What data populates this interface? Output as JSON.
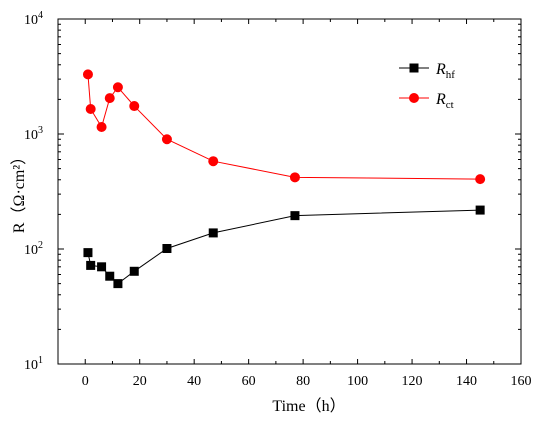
{
  "chart_data": {
    "type": "line",
    "xlabel": "Time（h）",
    "ylabel": "R（Ω·cm²）",
    "xlim": [
      -10,
      160
    ],
    "ylim_log10": [
      1,
      4
    ],
    "y_scale": "log",
    "x_ticks": [
      0,
      20,
      40,
      60,
      80,
      100,
      120,
      140,
      160
    ],
    "x_tick_labels": [
      "0",
      "20",
      "40",
      "60",
      "80",
      "100",
      "120",
      "140",
      "160"
    ],
    "y_ticks": [
      10,
      100,
      1000,
      10000
    ],
    "y_tick_labels": [
      {
        "base": "10",
        "exp": "1"
      },
      {
        "base": "10",
        "exp": "2"
      },
      {
        "base": "10",
        "exp": "3"
      },
      {
        "base": "10",
        "exp": "4"
      }
    ],
    "grid": false,
    "legend_position": "top-right",
    "series": [
      {
        "name_main": "R",
        "name_sub": "hf",
        "color": "#000000",
        "marker": "square",
        "x": [
          1,
          2,
          6,
          9,
          12,
          18,
          30,
          47,
          77,
          145
        ],
        "y": [
          93,
          72,
          70,
          58,
          50,
          64,
          101,
          138,
          195,
          218
        ]
      },
      {
        "name_main": "R",
        "name_sub": "ct",
        "color": "#ff0000",
        "marker": "circle",
        "x": [
          1,
          2,
          6,
          9,
          12,
          18,
          30,
          47,
          77,
          145
        ],
        "y": [
          3300,
          1650,
          1150,
          2050,
          2550,
          1750,
          900,
          580,
          420,
          405
        ]
      }
    ]
  }
}
